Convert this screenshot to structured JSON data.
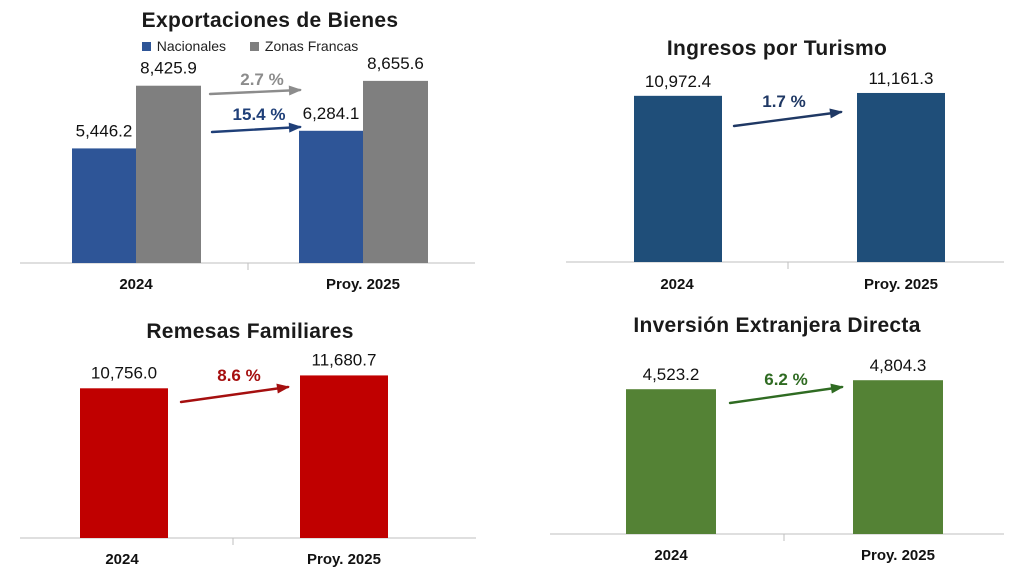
{
  "colors": {
    "axis": "#bfbfbf",
    "text": "#111111"
  },
  "chart_data": [
    {
      "id": "exports",
      "type": "bar",
      "title": "Exportaciones de Bienes",
      "categories": [
        "2024",
        "Proy. 2025"
      ],
      "series": [
        {
          "name": "Nacionales",
          "color": "#2e5597",
          "values": [
            5446.2,
            6284.1
          ],
          "labels": [
            "5,446.2",
            "6,284.1"
          ]
        },
        {
          "name": "Zonas Francas",
          "color": "#7f7f7f",
          "values": [
            8425.9,
            8655.6
          ],
          "labels": [
            "8,425.9",
            "8,655.6"
          ]
        }
      ],
      "growth": [
        {
          "series": "Zonas Francas",
          "label": "2.7 %",
          "color": "#8c8c8c"
        },
        {
          "series": "Nacionales",
          "label": "15.4 %",
          "color": "#1f3f78"
        }
      ],
      "ylim": [
        0,
        12500
      ],
      "legend": "top-center"
    },
    {
      "id": "tourism",
      "type": "bar",
      "title": "Ingresos por Turismo",
      "categories": [
        "2024",
        "Proy. 2025"
      ],
      "series": [
        {
          "name": "Ingresos",
          "color": "#1f4e79",
          "values": [
            10972.4,
            11161.3
          ],
          "labels": [
            "10,972.4",
            "11,161.3"
          ]
        }
      ],
      "growth": [
        {
          "series": "Ingresos",
          "label": "1.7 %",
          "color": "#1f3864"
        }
      ],
      "ylim": [
        0,
        17300
      ]
    },
    {
      "id": "remittances",
      "type": "bar",
      "title": "Remesas Familiares",
      "categories": [
        "2024",
        "Proy. 2025"
      ],
      "series": [
        {
          "name": "Remesas",
          "color": "#c00000",
          "values": [
            10756.0,
            11680.7
          ],
          "labels": [
            "10,756.0",
            "11,680.7"
          ]
        }
      ],
      "growth": [
        {
          "series": "Remesas",
          "label": "8.6 %",
          "color": "#a50f0f"
        }
      ],
      "ylim": [
        0,
        17100
      ]
    },
    {
      "id": "fdi",
      "type": "bar",
      "title": "Inversión Extranjera Directa",
      "categories": [
        "2024",
        "Proy. 2025"
      ],
      "series": [
        {
          "name": "IED",
          "color": "#548235",
          "values": [
            4523.2,
            4804.3
          ],
          "labels": [
            "4,523.2",
            "4,804.3"
          ]
        }
      ],
      "growth": [
        {
          "series": "IED",
          "label": "6.2 %",
          "color": "#2f6b22"
        }
      ],
      "ylim": [
        0,
        7310
      ]
    }
  ]
}
